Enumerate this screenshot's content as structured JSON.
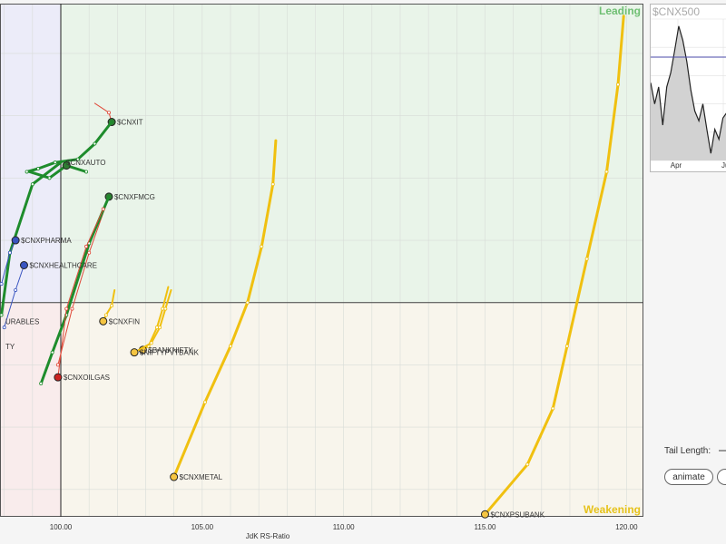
{
  "chart_data": {
    "type": "scatter",
    "subtype": "relative-rotation-graph",
    "xlabel": "JdK RS-Ratio",
    "x_ticks": [
      100.0,
      105.0,
      110.0,
      115.0,
      120.0
    ],
    "x_tick_labels": [
      "100.00",
      "105.00",
      "110.00",
      "115.00",
      "120.00"
    ],
    "xlim": [
      97.85,
      120.6
    ],
    "ylim": [
      96.56,
      104.8
    ],
    "x_center": 100,
    "y_center": 100,
    "quadrant_labels": {
      "top_right": "Leading",
      "bottom_right": "Weakening"
    },
    "grid": true,
    "series": [
      {
        "name": "$CNXPSUBANK",
        "color": "#f0c010",
        "head_fill": "#f5c542",
        "width": 3,
        "points": [
          [
            119.9,
            104.6
          ],
          [
            119.7,
            103.5
          ],
          [
            119.3,
            102.1
          ],
          [
            118.6,
            100.7
          ],
          [
            117.9,
            99.3
          ],
          [
            117.4,
            98.3
          ],
          [
            116.5,
            97.4
          ],
          [
            115.0,
            96.6
          ]
        ]
      },
      {
        "name": "$CNXMETAL",
        "color": "#f0c010",
        "head_fill": "#f5c542",
        "width": 3,
        "points": [
          [
            107.6,
            102.6
          ],
          [
            107.5,
            101.9
          ],
          [
            107.1,
            100.9
          ],
          [
            106.6,
            100.0
          ],
          [
            106.0,
            99.3
          ],
          [
            105.1,
            98.4
          ],
          [
            104.0,
            97.2
          ]
        ]
      },
      {
        "name": "$CNXFIN",
        "color": "#f0c010",
        "head_fill": "#f5c542",
        "width": 2,
        "points": [
          [
            101.9,
            100.2
          ],
          [
            101.8,
            99.95
          ],
          [
            101.6,
            99.8
          ],
          [
            101.5,
            99.7
          ]
        ]
      },
      {
        "name": "$BANKNIFTY",
        "color": "#f0c010",
        "head_fill": "#f5c542",
        "width": 2,
        "points": [
          [
            103.8,
            100.25
          ],
          [
            103.6,
            99.9
          ],
          [
            103.4,
            99.6
          ],
          [
            103.1,
            99.3
          ],
          [
            102.9,
            99.24
          ]
        ]
      },
      {
        "name": "$NIFTYPVTBANK",
        "color": "#f0c010",
        "head_fill": "#f5c542",
        "width": 2,
        "points": [
          [
            103.9,
            100.2
          ],
          [
            103.7,
            99.9
          ],
          [
            103.5,
            99.6
          ],
          [
            103.2,
            99.35
          ],
          [
            102.6,
            99.2
          ]
        ]
      },
      {
        "name": "$CNXIT",
        "color": "#e04a3a",
        "head_fill": "#2e7d32",
        "width": 1,
        "points": [
          [
            101.2,
            103.2
          ],
          [
            101.7,
            103.05
          ],
          [
            101.8,
            102.9
          ]
        ]
      },
      {
        "name": "$CNXIT_trail",
        "color": "#1e8c2c",
        "head_fill": "",
        "width": 3,
        "points": [
          [
            101.8,
            102.9
          ],
          [
            101.2,
            102.55
          ],
          [
            100.6,
            102.3
          ],
          [
            99.8,
            102.25
          ],
          [
            99.2,
            102.15
          ],
          [
            98.8,
            102.1
          ]
        ]
      },
      {
        "name": "$CNXAUTO",
        "color": "#1e8c2c",
        "head_fill": "#2e7d32",
        "width": 3,
        "points": [
          [
            98.9,
            102.1
          ],
          [
            99.6,
            102.0
          ],
          [
            100.2,
            102.2
          ],
          [
            100.9,
            102.1
          ]
        ]
      },
      {
        "name": "$CNXAUTO_trail",
        "color": "#1e8c2c",
        "head_fill": "",
        "width": 3,
        "points": [
          [
            100.0,
            102.25
          ],
          [
            99.0,
            101.9
          ],
          [
            98.2,
            100.8
          ],
          [
            97.9,
            99.8
          ]
        ]
      },
      {
        "name": "$CNXFMCG",
        "color": "#e04a3a",
        "head_fill": "#2e7d32",
        "width": 1,
        "points": [
          [
            101.7,
            101.7
          ],
          [
            101.0,
            100.8
          ],
          [
            100.4,
            99.9
          ],
          [
            99.9,
            99.0
          ]
        ]
      },
      {
        "name": "$CNXFMCG_trail",
        "color": "#1e8c2c",
        "head_fill": "",
        "width": 3,
        "points": [
          [
            101.7,
            101.7
          ],
          [
            101.0,
            100.95
          ],
          [
            100.2,
            99.8
          ],
          [
            99.7,
            99.2
          ],
          [
            99.3,
            98.7
          ]
        ]
      },
      {
        "name": "$CNXPHARMA",
        "color": "#3a55c0",
        "head_fill": "#3a55c0",
        "width": 1,
        "points": [
          [
            98.4,
            101.0
          ],
          [
            98.2,
            100.8
          ],
          [
            97.9,
            100.3
          ]
        ]
      },
      {
        "name": "$CNXHEALTHCARE",
        "color": "#3a55c0",
        "head_fill": "#3a55c0",
        "width": 1,
        "points": [
          [
            98.7,
            100.6
          ],
          [
            98.4,
            100.2
          ],
          [
            98.0,
            99.6
          ]
        ]
      },
      {
        "name": "$CNXOILGAS",
        "color": "#e04a3a",
        "head_fill": "#cc2222",
        "width": 1,
        "points": [
          [
            99.9,
            98.8
          ],
          [
            100.2,
            99.9
          ],
          [
            100.9,
            100.9
          ],
          [
            101.5,
            101.5
          ]
        ]
      }
    ],
    "labels": [
      {
        "text": "$CNXPSUBANK",
        "x": 115.0,
        "y": 96.6
      },
      {
        "text": "$CNXMETAL",
        "x": 104.0,
        "y": 97.2
      },
      {
        "text": "$CNXFIN",
        "x": 101.5,
        "y": 99.7
      },
      {
        "text": "$BANKNIFTY",
        "x": 102.9,
        "y": 99.24
      },
      {
        "text": "$NIFTYPVTBANK",
        "x": 102.6,
        "y": 99.2
      },
      {
        "text": "$CNXIT",
        "x": 101.8,
        "y": 102.9
      },
      {
        "text": "$CNXAUTO",
        "x": 100.0,
        "y": 102.25
      },
      {
        "text": "$CNXFMCG",
        "x": 101.7,
        "y": 101.7
      },
      {
        "text": "$CNXPHARMA",
        "x": 98.4,
        "y": 101.0
      },
      {
        "text": "$CNXHEALTHCARE",
        "x": 98.7,
        "y": 100.6
      },
      {
        "text": "$CNXOILGAS",
        "x": 99.9,
        "y": 98.8
      },
      {
        "text": "URABLES",
        "x": 97.85,
        "y": 99.7
      },
      {
        "text": "TY",
        "x": 97.85,
        "y": 99.3
      }
    ]
  },
  "mini_chart": {
    "title": "$CNX500",
    "x_labels": [
      "Apr",
      "Ju"
    ],
    "values": [
      0.55,
      0.4,
      0.52,
      0.25,
      0.52,
      0.62,
      0.78,
      0.95,
      0.85,
      0.7,
      0.5,
      0.35,
      0.28,
      0.4,
      0.22,
      0.05,
      0.22,
      0.15,
      0.3,
      0.34
    ]
  },
  "controls": {
    "tail_length_label": "Tail Length:",
    "animate_label": "animate"
  }
}
